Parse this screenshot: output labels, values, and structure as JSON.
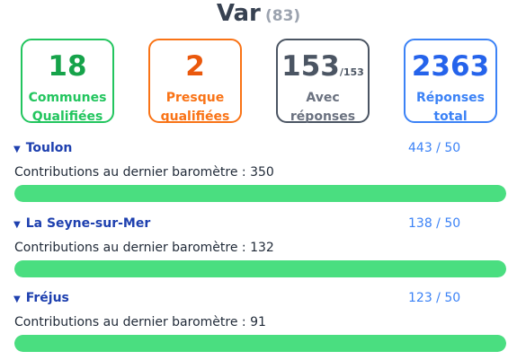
{
  "header": {
    "title": "Var",
    "dept_code": "(83)"
  },
  "stats": [
    {
      "value": "18",
      "suffix": "",
      "label_line1": "Communes",
      "label_line2": "Qualifiées",
      "color": "#16a34a"
    },
    {
      "value": "2",
      "suffix": "",
      "label_line1": "Presque",
      "label_line2": "qualifiées",
      "color": "#ea580c"
    },
    {
      "value": "153",
      "suffix": "/153",
      "label_line1": "Avec",
      "label_line2": "réponses",
      "color": "#4b5563"
    },
    {
      "value": "2363",
      "suffix": "",
      "label_line1": "Réponses",
      "label_line2": "total",
      "color": "#2563eb"
    }
  ],
  "cities": [
    {
      "name": "Toulon",
      "score": "443 / 50",
      "contrib_label": "Contributions au dernier baromètre : 350",
      "progress": 1.0
    },
    {
      "name": "La Seyne-sur-Mer",
      "score": "138 / 50",
      "contrib_label": "Contributions au dernier baromètre : 132",
      "progress": 1.0
    },
    {
      "name": "Fréjus",
      "score": "123 / 50",
      "contrib_label": "Contributions au dernier baromètre : 91",
      "progress": 1.0
    }
  ],
  "colors": {
    "progress_fill": "#4ade80",
    "city_link": "#1e40af",
    "score": "#3b82f6"
  }
}
